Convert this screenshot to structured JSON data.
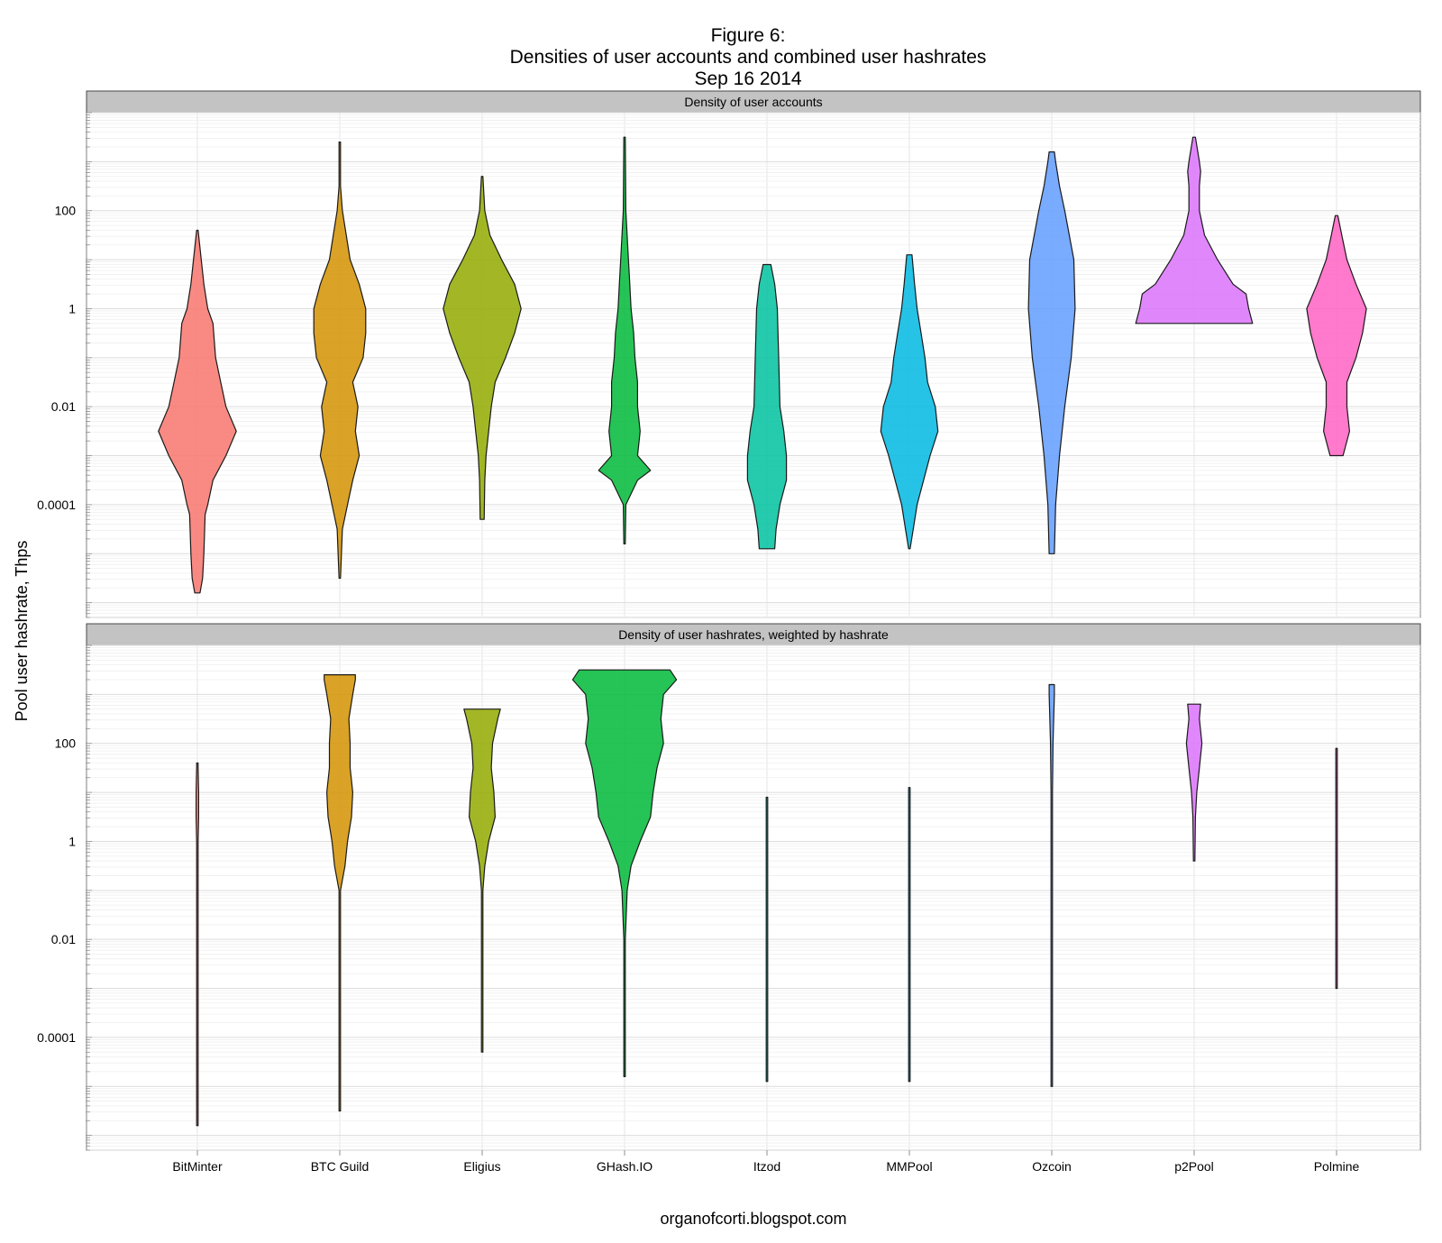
{
  "figure": {
    "title_lines": [
      "Figure 6:",
      "Densities of user accounts and combined user hashrates",
      "Sep 16 2014"
    ],
    "ylabel": "Pool user hashrate, Thps",
    "caption": "organofcorti.blogspot.com"
  },
  "chart_data": [
    {
      "type": "violin",
      "panel_title": "Density of user accounts",
      "categories": [
        "BitMinter",
        "BTC Guild",
        "Eligius",
        "GHash.IO",
        "Itzod",
        "MMPool",
        "Ozcoin",
        "p2Pool",
        "Polmine"
      ],
      "colors": [
        "#f8766d",
        "#d39200",
        "#93aa00",
        "#00ba38",
        "#00c19f",
        "#00b9e3",
        "#619cff",
        "#db72fb",
        "#ff61c3"
      ],
      "y_scale": "log10",
      "ylim": [
        5e-07,
        10000
      ],
      "y_ticks": [
        0.0001,
        0.01,
        1,
        100
      ],
      "y_tick_labels": [
        "0.0001",
        "0.01",
        "1",
        "100"
      ],
      "grid": true,
      "violins": [
        {
          "name": "BitMinter",
          "profile": [
            [
              -5.8,
              0.02
            ],
            [
              -5.5,
              0.04
            ],
            [
              -5,
              0.05
            ],
            [
              -4.2,
              0.06
            ],
            [
              -4,
              0.08
            ],
            [
              -3.5,
              0.12
            ],
            [
              -3,
              0.22
            ],
            [
              -2.5,
              0.3
            ],
            [
              -2,
              0.22
            ],
            [
              -1.5,
              0.18
            ],
            [
              -1,
              0.14
            ],
            [
              -0.3,
              0.12
            ],
            [
              0,
              0.08
            ],
            [
              0.5,
              0.05
            ],
            [
              1,
              0.03
            ],
            [
              1.6,
              0.005
            ]
          ]
        },
        {
          "name": "BTC Guild",
          "profile": [
            [
              -5.5,
              0.005
            ],
            [
              -4.5,
              0.02
            ],
            [
              -4,
              0.06
            ],
            [
              -3.5,
              0.1
            ],
            [
              -3,
              0.15
            ],
            [
              -2.5,
              0.12
            ],
            [
              -2,
              0.14
            ],
            [
              -1.5,
              0.1
            ],
            [
              -1,
              0.18
            ],
            [
              -0.5,
              0.2
            ],
            [
              0,
              0.2
            ],
            [
              0.5,
              0.15
            ],
            [
              1,
              0.08
            ],
            [
              1.5,
              0.05
            ],
            [
              2,
              0.02
            ],
            [
              2.5,
              0.005
            ],
            [
              3.4,
              0.003
            ]
          ]
        },
        {
          "name": "Eligius",
          "profile": [
            [
              -4.3,
              0.015
            ],
            [
              -3.5,
              0.02
            ],
            [
              -3,
              0.03
            ],
            [
              -2.5,
              0.05
            ],
            [
              -2,
              0.07
            ],
            [
              -1.5,
              0.1
            ],
            [
              -1,
              0.18
            ],
            [
              -0.5,
              0.25
            ],
            [
              0,
              0.3
            ],
            [
              0.5,
              0.25
            ],
            [
              1,
              0.15
            ],
            [
              1.5,
              0.06
            ],
            [
              2,
              0.02
            ],
            [
              2.7,
              0.005
            ]
          ]
        },
        {
          "name": "GHash.IO",
          "profile": [
            [
              -4.8,
              0.005
            ],
            [
              -4,
              0.01
            ],
            [
              -3.5,
              0.1
            ],
            [
              -3.3,
              0.2
            ],
            [
              -3,
              0.1
            ],
            [
              -2.5,
              0.12
            ],
            [
              -2,
              0.1
            ],
            [
              -1.5,
              0.1
            ],
            [
              -1,
              0.08
            ],
            [
              -0.5,
              0.07
            ],
            [
              0,
              0.05
            ],
            [
              0.5,
              0.04
            ],
            [
              1,
              0.03
            ],
            [
              2,
              0.01
            ],
            [
              3.5,
              0.003
            ]
          ]
        },
        {
          "name": "Itzod",
          "profile": [
            [
              -4.9,
              0.06
            ],
            [
              -4.5,
              0.07
            ],
            [
              -4,
              0.1
            ],
            [
              -3.5,
              0.15
            ],
            [
              -3,
              0.15
            ],
            [
              -2.5,
              0.13
            ],
            [
              -2,
              0.1
            ],
            [
              -1,
              0.09
            ],
            [
              0,
              0.08
            ],
            [
              0.5,
              0.06
            ],
            [
              0.9,
              0.03
            ]
          ]
        },
        {
          "name": "MMPool",
          "profile": [
            [
              -4.9,
              0.005
            ],
            [
              -4.5,
              0.03
            ],
            [
              -4,
              0.06
            ],
            [
              -3.5,
              0.11
            ],
            [
              -3,
              0.16
            ],
            [
              -2.5,
              0.22
            ],
            [
              -2,
              0.2
            ],
            [
              -1.5,
              0.14
            ],
            [
              -1,
              0.12
            ],
            [
              -0.5,
              0.09
            ],
            [
              0,
              0.06
            ],
            [
              0.5,
              0.04
            ],
            [
              1.1,
              0.02
            ]
          ]
        },
        {
          "name": "Ozcoin",
          "profile": [
            [
              -5,
              0.02
            ],
            [
              -4,
              0.03
            ],
            [
              -3,
              0.06
            ],
            [
              -2,
              0.1
            ],
            [
              -1,
              0.15
            ],
            [
              0,
              0.18
            ],
            [
              1,
              0.17
            ],
            [
              2,
              0.1
            ],
            [
              2.5,
              0.06
            ],
            [
              3,
              0.03
            ],
            [
              3.2,
              0.02
            ]
          ]
        },
        {
          "name": "p2Pool",
          "profile": [
            [
              -0.3,
              0.45
            ],
            [
              0,
              0.42
            ],
            [
              0.3,
              0.4
            ],
            [
              0.5,
              0.3
            ],
            [
              1,
              0.18
            ],
            [
              1.5,
              0.08
            ],
            [
              2,
              0.04
            ],
            [
              2.5,
              0.04
            ],
            [
              3,
              0.04
            ],
            [
              2.8,
              0.05
            ],
            [
              3.5,
              0.01
            ]
          ]
        },
        {
          "name": "Polmine",
          "profile": [
            [
              -3,
              0.05
            ],
            [
              -2.5,
              0.1
            ],
            [
              -2,
              0.08
            ],
            [
              -1.5,
              0.08
            ],
            [
              -1,
              0.15
            ],
            [
              -0.5,
              0.2
            ],
            [
              0,
              0.23
            ],
            [
              0.5,
              0.15
            ],
            [
              1,
              0.08
            ],
            [
              1.5,
              0.04
            ],
            [
              1.9,
              0.01
            ]
          ]
        }
      ]
    },
    {
      "type": "violin",
      "panel_title": "Density of user hashrates, weighted by hashrate",
      "categories": [
        "BitMinter",
        "BTC Guild",
        "Eligius",
        "GHash.IO",
        "Itzod",
        "MMPool",
        "Ozcoin",
        "p2Pool",
        "Polmine"
      ],
      "colors": [
        "#f8766d",
        "#d39200",
        "#93aa00",
        "#00ba38",
        "#00c19f",
        "#00b9e3",
        "#619cff",
        "#db72fb",
        "#ff61c3"
      ],
      "y_scale": "log10",
      "ylim": [
        5e-07,
        10000
      ],
      "y_ticks": [
        0.0001,
        0.01,
        1,
        100
      ],
      "y_tick_labels": [
        "0.0001",
        "0.01",
        "1",
        "100"
      ],
      "grid": true,
      "violins": [
        {
          "name": "BitMinter",
          "profile": [
            [
              -5.8,
              0.001
            ],
            [
              0,
              0.002
            ],
            [
              0.5,
              0.01
            ],
            [
              1,
              0.01
            ],
            [
              1.5,
              0.005
            ],
            [
              1.6,
              0.002
            ]
          ]
        },
        {
          "name": "BTC Guild",
          "profile": [
            [
              -5.5,
              0.001
            ],
            [
              -1,
              0.002
            ],
            [
              -0.5,
              0.04
            ],
            [
              0,
              0.06
            ],
            [
              0.5,
              0.09
            ],
            [
              1,
              0.1
            ],
            [
              1.5,
              0.08
            ],
            [
              2,
              0.08
            ],
            [
              2.5,
              0.07
            ],
            [
              3,
              0.1
            ],
            [
              3.3,
              0.12
            ],
            [
              3.4,
              0.12
            ]
          ]
        },
        {
          "name": "Eligius",
          "profile": [
            [
              -4.3,
              0.001
            ],
            [
              -1,
              0.002
            ],
            [
              -0.5,
              0.02
            ],
            [
              0,
              0.05
            ],
            [
              0.5,
              0.1
            ],
            [
              1,
              0.09
            ],
            [
              1.5,
              0.07
            ],
            [
              2,
              0.08
            ],
            [
              2.5,
              0.12
            ],
            [
              2.7,
              0.14
            ]
          ]
        },
        {
          "name": "GHash.IO",
          "profile": [
            [
              -4.8,
              0.001
            ],
            [
              -2,
              0.004
            ],
            [
              -1,
              0.02
            ],
            [
              -0.5,
              0.05
            ],
            [
              0,
              0.12
            ],
            [
              0.5,
              0.2
            ],
            [
              1,
              0.22
            ],
            [
              1.5,
              0.25
            ],
            [
              2,
              0.3
            ],
            [
              2.5,
              0.28
            ],
            [
              3,
              0.3
            ],
            [
              3.3,
              0.4
            ],
            [
              3.5,
              0.35
            ]
          ]
        },
        {
          "name": "Itzod",
          "profile": [
            [
              -4.9,
              0.002
            ],
            [
              0.9,
              0.002
            ]
          ]
        },
        {
          "name": "MMPool",
          "profile": [
            [
              -4.9,
              0.002
            ],
            [
              1.1,
              0.002
            ]
          ]
        },
        {
          "name": "Ozcoin",
          "profile": [
            [
              -5,
              0.002
            ],
            [
              1,
              0.004
            ],
            [
              2,
              0.01
            ],
            [
              3,
              0.02
            ],
            [
              3.2,
              0.02
            ]
          ]
        },
        {
          "name": "p2Pool",
          "profile": [
            [
              -0.4,
              0.005
            ],
            [
              0.5,
              0.01
            ],
            [
              1,
              0.02
            ],
            [
              1.5,
              0.04
            ],
            [
              2,
              0.06
            ],
            [
              2.5,
              0.04
            ],
            [
              2.8,
              0.05
            ]
          ]
        },
        {
          "name": "Polmine",
          "profile": [
            [
              -3,
              0.002
            ],
            [
              0.5,
              0.004
            ],
            [
              1.5,
              0.003
            ],
            [
              1.9,
              0.002
            ]
          ]
        }
      ]
    }
  ]
}
